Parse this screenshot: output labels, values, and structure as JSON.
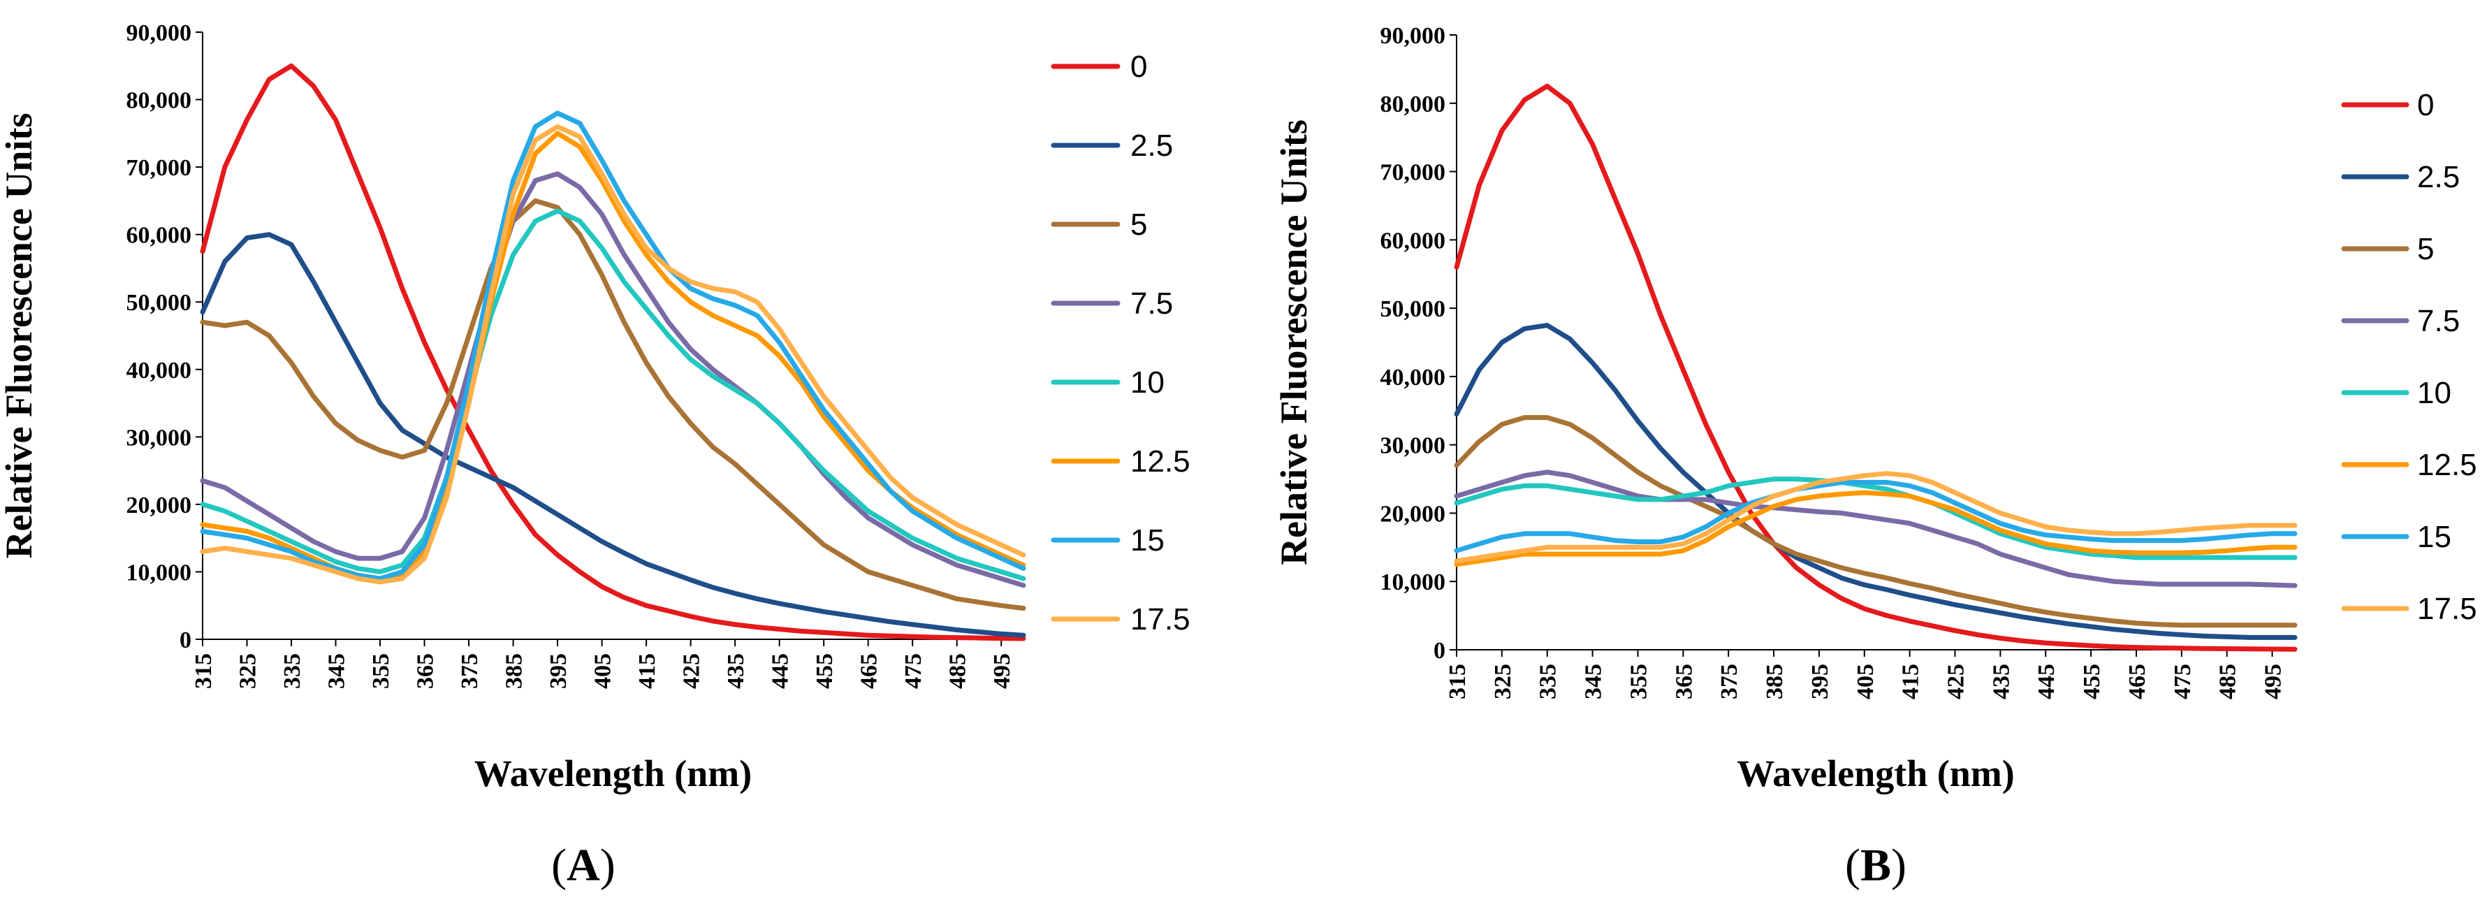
{
  "colors": {
    "0": "#e41a1c",
    "2.5": "#1f4e8a",
    "5": "#a87334",
    "7.5": "#7a6aa6",
    "10": "#22c7c0",
    "12.5": "#ff9900",
    "15": "#27a9e8",
    "17.5": "#ffb04a"
  },
  "chart_data": [
    {
      "type": "line",
      "panel_label": "A",
      "xlabel": "Wavelength (nm)",
      "ylabel": "Relative Fluorescence Units",
      "xlim": [
        315,
        500
      ],
      "ylim": [
        0,
        90000
      ],
      "xticks": [
        "315",
        "325",
        "335",
        "345",
        "355",
        "365",
        "375",
        "385",
        "395",
        "405",
        "415",
        "425",
        "435",
        "445",
        "455",
        "465",
        "475",
        "485",
        "495"
      ],
      "yticks": [
        "0",
        "10,000",
        "20,000",
        "30,000",
        "40,000",
        "50,000",
        "60,000",
        "70,000",
        "80,000",
        "90,000"
      ],
      "x": [
        315,
        320,
        325,
        330,
        335,
        340,
        345,
        350,
        355,
        360,
        365,
        370,
        375,
        380,
        385,
        390,
        395,
        400,
        405,
        410,
        415,
        420,
        425,
        430,
        435,
        440,
        445,
        450,
        455,
        460,
        465,
        470,
        475,
        480,
        485,
        490,
        495,
        500
      ],
      "legend_position": "right",
      "series": [
        {
          "name": "0",
          "values": [
            57500,
            70000,
            77000,
            83000,
            85000,
            82000,
            77000,
            69000,
            61000,
            52000,
            44000,
            37000,
            31000,
            25000,
            20000,
            15500,
            12500,
            10000,
            7800,
            6200,
            5000,
            4200,
            3400,
            2700,
            2200,
            1800,
            1500,
            1200,
            1000,
            800,
            600,
            500,
            400,
            300,
            250,
            200,
            150,
            100
          ]
        },
        {
          "name": "2.5",
          "values": [
            48500,
            56000,
            59500,
            60000,
            58500,
            53000,
            47000,
            41000,
            35000,
            31000,
            29000,
            27000,
            25500,
            24000,
            22500,
            20500,
            18500,
            16500,
            14500,
            12800,
            11200,
            10000,
            8800,
            7700,
            6800,
            6000,
            5300,
            4700,
            4100,
            3600,
            3100,
            2600,
            2200,
            1800,
            1400,
            1100,
            800,
            600
          ]
        },
        {
          "name": "5",
          "values": [
            47000,
            46500,
            47000,
            45000,
            41000,
            36000,
            32000,
            29500,
            28000,
            27000,
            28000,
            35000,
            45000,
            55000,
            62000,
            65000,
            64000,
            60000,
            54000,
            47000,
            41000,
            36000,
            32000,
            28500,
            26000,
            23000,
            20000,
            17000,
            14000,
            12000,
            10000,
            9000,
            8000,
            7000,
            6000,
            5500,
            5000,
            4600
          ]
        },
        {
          "name": "7.5",
          "values": [
            23500,
            22500,
            20500,
            18500,
            16500,
            14500,
            13000,
            12000,
            12000,
            13000,
            18000,
            28000,
            40000,
            52000,
            62000,
            68000,
            69000,
            67000,
            63000,
            57000,
            52000,
            47000,
            43000,
            40000,
            37500,
            35000,
            32000,
            28500,
            24500,
            21000,
            18000,
            16000,
            14000,
            12500,
            11000,
            10000,
            9000,
            8000
          ]
        },
        {
          "name": "10",
          "values": [
            20000,
            19000,
            17500,
            16000,
            14500,
            13000,
            11500,
            10500,
            10000,
            11000,
            15000,
            24000,
            36000,
            48000,
            57000,
            62000,
            63500,
            62000,
            58000,
            53000,
            49000,
            45000,
            41500,
            39000,
            37000,
            35000,
            32000,
            28500,
            25000,
            22000,
            19000,
            17000,
            15000,
            13500,
            12000,
            11000,
            10000,
            9000
          ]
        },
        {
          "name": "12.5",
          "values": [
            17000,
            16500,
            16000,
            15000,
            13500,
            12000,
            10500,
            9500,
            9000,
            9500,
            13000,
            22000,
            35000,
            50000,
            63000,
            72000,
            75000,
            73000,
            68000,
            62000,
            57000,
            53000,
            50000,
            48000,
            46500,
            45000,
            42000,
            38000,
            33000,
            29000,
            25000,
            22000,
            19500,
            17500,
            15500,
            14000,
            12500,
            11000
          ]
        },
        {
          "name": "15",
          "values": [
            16000,
            15500,
            15000,
            14000,
            13000,
            11500,
            10500,
            9500,
            9000,
            10000,
            14000,
            24000,
            38000,
            54000,
            68000,
            76000,
            78000,
            76500,
            71000,
            65000,
            60000,
            55000,
            52000,
            50500,
            49500,
            48000,
            44000,
            39000,
            34000,
            30000,
            26000,
            22000,
            19000,
            17000,
            15000,
            13500,
            12000,
            10500
          ]
        },
        {
          "name": "17.5",
          "values": [
            13000,
            13500,
            13000,
            12500,
            12000,
            11000,
            10000,
            9000,
            8500,
            9000,
            12000,
            21000,
            35000,
            51000,
            66000,
            74000,
            76000,
            74500,
            69000,
            63000,
            58000,
            55000,
            53000,
            52000,
            51500,
            50000,
            46000,
            41000,
            36000,
            32000,
            28000,
            24000,
            21000,
            19000,
            17000,
            15500,
            14000,
            12500
          ]
        }
      ]
    },
    {
      "type": "line",
      "panel_label": "B",
      "xlabel": "Wavelength (nm)",
      "ylabel": "Relative Fluorescence Units",
      "xlim": [
        315,
        500
      ],
      "ylim": [
        0,
        90000
      ],
      "xticks": [
        "315",
        "325",
        "335",
        "345",
        "355",
        "365",
        "375",
        "385",
        "395",
        "405",
        "415",
        "425",
        "435",
        "445",
        "455",
        "465",
        "475",
        "485",
        "495"
      ],
      "yticks": [
        "0",
        "10,000",
        "20,000",
        "30,000",
        "40,000",
        "50,000",
        "60,000",
        "70,000",
        "80,000",
        "90,000"
      ],
      "x": [
        315,
        320,
        325,
        330,
        335,
        340,
        345,
        350,
        355,
        360,
        365,
        370,
        375,
        380,
        385,
        390,
        395,
        400,
        405,
        410,
        415,
        420,
        425,
        430,
        435,
        440,
        445,
        450,
        455,
        460,
        465,
        470,
        475,
        480,
        485,
        490,
        495,
        500
      ],
      "legend_position": "right",
      "series": [
        {
          "name": "0",
          "values": [
            56000,
            68000,
            76000,
            80500,
            82500,
            80000,
            74000,
            66000,
            58000,
            49000,
            41000,
            33000,
            26000,
            20000,
            15500,
            12000,
            9500,
            7500,
            6000,
            5000,
            4200,
            3500,
            2800,
            2200,
            1700,
            1300,
            1000,
            800,
            600,
            450,
            350,
            280,
            220,
            180,
            150,
            120,
            100,
            80
          ]
        },
        {
          "name": "2.5",
          "values": [
            34500,
            41000,
            45000,
            47000,
            47500,
            45500,
            42000,
            38000,
            33500,
            29500,
            26000,
            23000,
            20000,
            17500,
            15500,
            13500,
            12000,
            10500,
            9500,
            8800,
            8000,
            7300,
            6600,
            6000,
            5400,
            4800,
            4300,
            3800,
            3400,
            3000,
            2700,
            2400,
            2200,
            2000,
            1900,
            1800,
            1800,
            1800
          ]
        },
        {
          "name": "5",
          "values": [
            27000,
            30500,
            33000,
            34000,
            34000,
            33000,
            31000,
            28500,
            26000,
            24000,
            22500,
            21000,
            19500,
            17500,
            15500,
            14000,
            13000,
            12000,
            11200,
            10500,
            9700,
            9000,
            8200,
            7500,
            6800,
            6100,
            5500,
            5000,
            4600,
            4200,
            3900,
            3700,
            3600,
            3600,
            3600,
            3600,
            3600,
            3600
          ]
        },
        {
          "name": "7.5",
          "values": [
            22500,
            23500,
            24500,
            25500,
            26000,
            25500,
            24500,
            23500,
            22500,
            22000,
            22000,
            22000,
            21500,
            21000,
            20800,
            20500,
            20200,
            20000,
            19500,
            19000,
            18500,
            17500,
            16500,
            15500,
            14000,
            13000,
            12000,
            11000,
            10500,
            10000,
            9800,
            9600,
            9600,
            9600,
            9600,
            9600,
            9500,
            9400
          ]
        },
        {
          "name": "10",
          "values": [
            21500,
            22500,
            23500,
            24000,
            24000,
            23500,
            23000,
            22500,
            22000,
            22000,
            22500,
            23000,
            24000,
            24500,
            25000,
            25000,
            24800,
            24500,
            24000,
            23500,
            22500,
            21500,
            20000,
            18500,
            17000,
            16000,
            15000,
            14500,
            14000,
            13800,
            13500,
            13500,
            13500,
            13500,
            13500,
            13500,
            13500,
            13500
          ]
        },
        {
          "name": "12.5",
          "values": [
            12500,
            13000,
            13500,
            14000,
            14000,
            14000,
            14000,
            14000,
            14000,
            14000,
            14500,
            16000,
            18000,
            19500,
            21000,
            22000,
            22500,
            22800,
            23000,
            22800,
            22500,
            21500,
            20500,
            19000,
            17500,
            16500,
            15500,
            15000,
            14500,
            14300,
            14200,
            14200,
            14200,
            14300,
            14500,
            14800,
            15000,
            15000
          ]
        },
        {
          "name": "15",
          "values": [
            14500,
            15500,
            16500,
            17000,
            17000,
            17000,
            16500,
            16000,
            15800,
            15800,
            16500,
            18000,
            20000,
            21500,
            22500,
            23500,
            24000,
            24500,
            24500,
            24500,
            24000,
            23000,
            21500,
            20000,
            18500,
            17500,
            16800,
            16500,
            16200,
            16000,
            16000,
            16000,
            16000,
            16200,
            16500,
            16800,
            17000,
            17000
          ]
        },
        {
          "name": "17.5",
          "values": [
            13000,
            13500,
            14000,
            14500,
            15000,
            15000,
            15000,
            15000,
            15000,
            15000,
            15500,
            17000,
            19000,
            21000,
            22500,
            23500,
            24500,
            25000,
            25500,
            25800,
            25500,
            24500,
            23000,
            21500,
            20000,
            19000,
            18000,
            17500,
            17200,
            17000,
            17000,
            17200,
            17500,
            17800,
            18000,
            18200,
            18200,
            18200
          ]
        }
      ]
    }
  ]
}
